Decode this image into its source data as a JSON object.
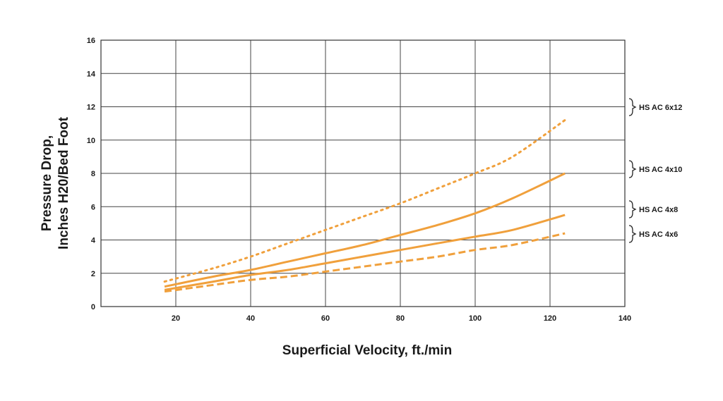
{
  "chart_data": {
    "type": "line",
    "xlabel": "Superficial Velocity, ft./min",
    "ylabel_lines": [
      "Pressure Drop,",
      "Inches H20/Bed Foot"
    ],
    "xlim": [
      0,
      140
    ],
    "ylim": [
      0,
      16
    ],
    "x_ticks": [
      20,
      40,
      60,
      80,
      100,
      120,
      140
    ],
    "y_ticks": [
      0,
      2,
      4,
      6,
      8,
      10,
      12,
      14,
      16
    ],
    "grid": true,
    "line_color": "#f0a03c",
    "legend_placement": "right",
    "series": [
      {
        "name": "HS AC 6x12",
        "style": "dotted",
        "x": [
          17,
          30,
          40,
          50,
          60,
          70,
          80,
          90,
          100,
          110,
          124
        ],
        "y": [
          1.5,
          2.3,
          3.0,
          3.8,
          4.6,
          5.4,
          6.2,
          7.1,
          8.0,
          9.0,
          11.2
        ]
      },
      {
        "name": "HS AC 4x10",
        "style": "solid",
        "x": [
          17,
          30,
          40,
          50,
          60,
          70,
          80,
          90,
          100,
          110,
          124
        ],
        "y": [
          1.2,
          1.8,
          2.2,
          2.7,
          3.2,
          3.7,
          4.3,
          4.9,
          5.6,
          6.5,
          8.0
        ]
      },
      {
        "name": "HS AC 4x8",
        "style": "solid",
        "x": [
          17,
          30,
          40,
          50,
          60,
          70,
          80,
          90,
          100,
          110,
          124
        ],
        "y": [
          1.0,
          1.5,
          1.9,
          2.2,
          2.6,
          3.0,
          3.4,
          3.8,
          4.2,
          4.6,
          5.5
        ]
      },
      {
        "name": "HS AC 4x6",
        "style": "dashed",
        "x": [
          17,
          30,
          40,
          50,
          60,
          70,
          80,
          90,
          100,
          110,
          124
        ],
        "y": [
          0.9,
          1.3,
          1.6,
          1.8,
          2.1,
          2.4,
          2.7,
          3.0,
          3.4,
          3.7,
          4.4
        ]
      }
    ]
  }
}
